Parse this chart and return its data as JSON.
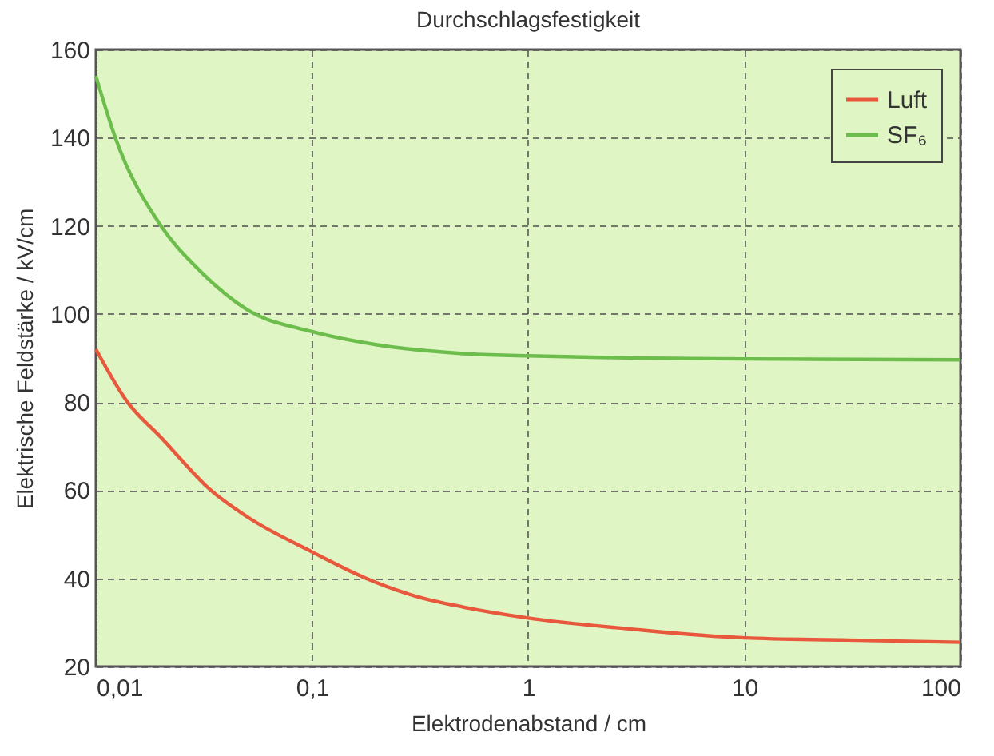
{
  "chart_data": {
    "type": "line",
    "title": "Durchschlagsfestigkeit",
    "xlabel": "Elektrodenabstand / cm",
    "ylabel": "Elektrische Feldstärke / kV/cm",
    "log": "x",
    "xlim": [
      0.01,
      100
    ],
    "xticks": [
      {
        "value": 0.01,
        "label": "0,01"
      },
      {
        "value": 0.1,
        "label": "0,1"
      },
      1,
      10,
      100
    ],
    "ylim": [
      20,
      160
    ],
    "yticks": [
      20,
      40,
      60,
      80,
      100,
      120,
      140,
      160
    ],
    "grid": true,
    "legend": "top right",
    "line_style": "solid",
    "marker": "none",
    "series": [
      {
        "name": "Luft",
        "color": "#e8583c",
        "x": [
          0.01,
          0.014,
          0.02,
          0.034,
          0.05,
          0.1,
          0.178,
          0.3,
          0.5,
          1,
          3,
          10,
          30,
          100
        ],
        "values": [
          92,
          80,
          72,
          60,
          54,
          46,
          40,
          36,
          33.5,
          31,
          28.5,
          26.5,
          26,
          25.5
        ]
      },
      {
        "name": "SF₆",
        "color": "#6cbd4c",
        "x": [
          0.01,
          0.0123,
          0.02,
          0.03,
          0.05,
          0.1,
          0.2,
          0.5,
          1,
          3,
          10,
          100
        ],
        "values": [
          154,
          140,
          120,
          110,
          101,
          96,
          93,
          91,
          90.5,
          90,
          89.8,
          89.6
        ]
      }
    ]
  }
}
